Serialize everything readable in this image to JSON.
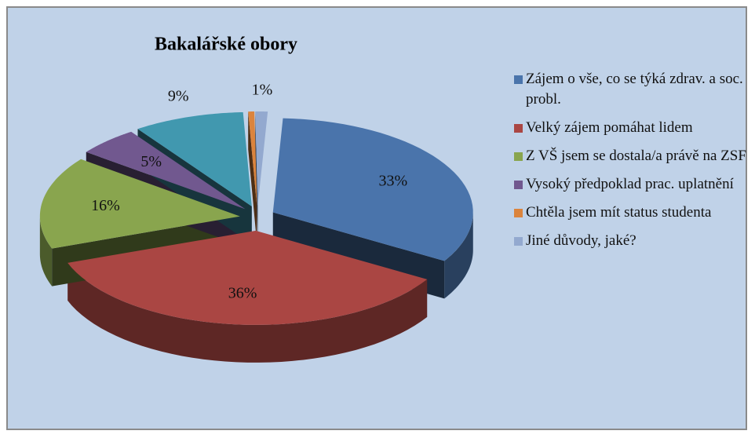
{
  "chart_data": {
    "type": "pie3d",
    "title": "Bakalářské obory",
    "categories": [
      "Zájem o vše, co se týká zdrav. a soc. probl.",
      "Velký zájem pomáhat lidem",
      "Z VŠ jsem se dostala/a právě na ZSF",
      "Vysoký předpoklad prac. uplatnění",
      null,
      "Chtěla jsem mít status studenta",
      "Jiné důvody, jaké?"
    ],
    "values": [
      33,
      36,
      16,
      5,
      9,
      0.5,
      1
    ],
    "value_labels": [
      "33%",
      "36%",
      "16%",
      "5%",
      "9%",
      null,
      "1%"
    ],
    "colors": [
      "#4a74ab",
      "#aa4643",
      "#89a54e",
      "#71588f",
      "#4198af",
      "#db843d",
      "#93a9cf"
    ],
    "legend": "right"
  }
}
